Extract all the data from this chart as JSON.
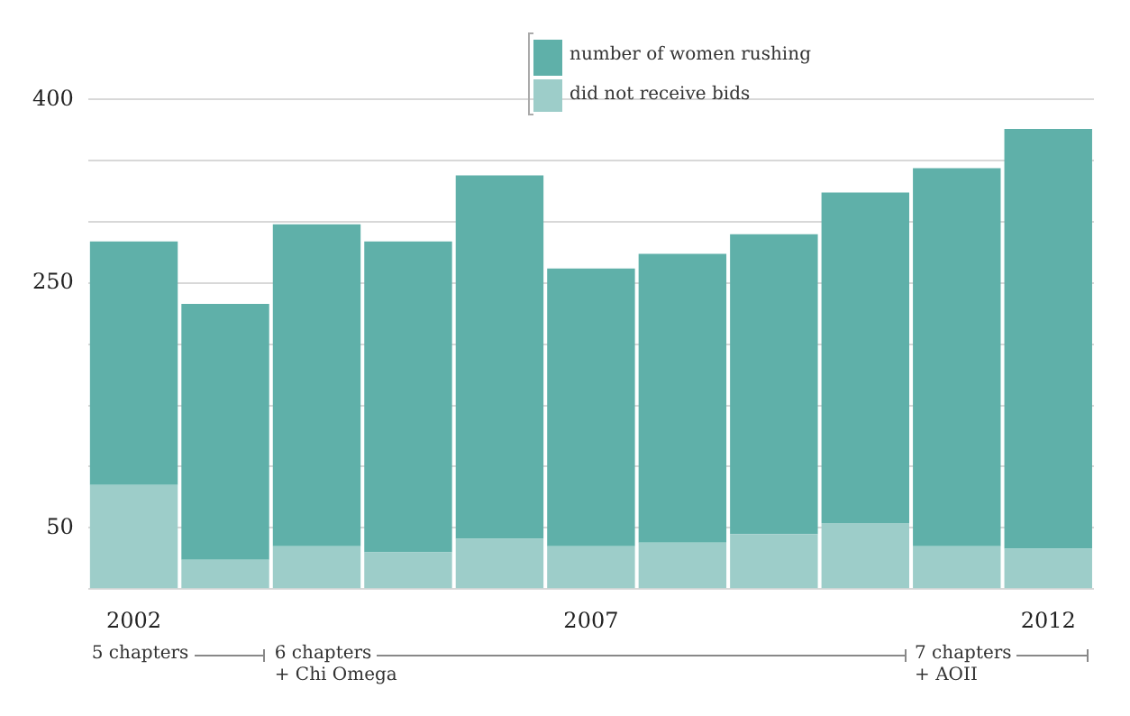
{
  "chart_data": {
    "type": "bar",
    "stacked": true,
    "categories": [
      "2002",
      null,
      null,
      null,
      null,
      "2007",
      null,
      null,
      null,
      null,
      "2012"
    ],
    "series": [
      {
        "name": "did not receive bids",
        "color": "#9dcdc9",
        "values": [
          85,
          24,
          35,
          30,
          41,
          35,
          38,
          45,
          54,
          35,
          33
        ]
      },
      {
        "name": "number of women rushing",
        "color": "#5fb0a9",
        "values": [
          199,
          209,
          263,
          254,
          297,
          227,
          236,
          245,
          270,
          309,
          343
        ]
      }
    ],
    "ylim": [
      0,
      400
    ],
    "yticks": [
      {
        "value": 0,
        "label": null
      },
      50,
      {
        "value": 100,
        "label": null
      },
      {
        "value": 150,
        "label": null
      },
      {
        "value": 200,
        "label": null
      },
      250,
      {
        "value": 300,
        "label": null
      },
      {
        "value": 350,
        "label": null
      },
      400
    ],
    "grid": "y",
    "legend": "top",
    "annotations": [
      "5 chapters",
      "6 chapters\n+ Chi Omega",
      "7 chapters\n+ AOII"
    ]
  }
}
